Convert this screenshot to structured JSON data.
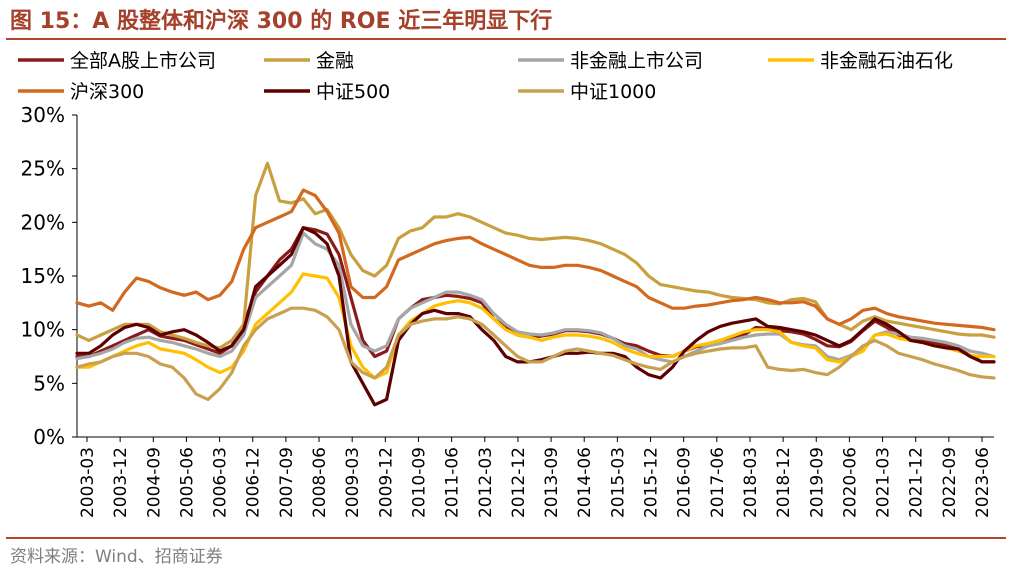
{
  "header": {
    "title": "图 15：A 股整体和沪深 300 的 ROE 近三年明显下行"
  },
  "footer": {
    "source": "资料来源：Wind、招商证券"
  },
  "chart_data": {
    "type": "line",
    "title": "图 15：A 股整体和沪深 300 的 ROE 近三年明显下行",
    "ylabel": "",
    "xlabel": "",
    "ylim": [
      0,
      30
    ],
    "y_ticks": [
      "0%",
      "5%",
      "10%",
      "15%",
      "20%",
      "25%",
      "30%"
    ],
    "y_tick_values": [
      0,
      5,
      10,
      15,
      20,
      25,
      30
    ],
    "grid": false,
    "legend_position": "top",
    "x_tick_labels": [
      "2003-03",
      "2003-12",
      "2004-09",
      "2005-06",
      "2006-03",
      "2006-12",
      "2007-09",
      "2008-06",
      "2009-03",
      "2009-12",
      "2010-09",
      "2011-06",
      "2012-03",
      "2012-12",
      "2013-09",
      "2014-06",
      "2015-03",
      "2015-12",
      "2016-09",
      "2017-06",
      "2018-03",
      "2018-12",
      "2019-09",
      "2020-06",
      "2021-03",
      "2021-12",
      "2022-09",
      "2023-06"
    ],
    "series": [
      {
        "name": "全部A股上市公司",
        "color": "#8b1a1a",
        "values": [
          7.5,
          7.5,
          8.0,
          8.5,
          9.0,
          9.5,
          10.0,
          9.4,
          9.2,
          9.0,
          8.6,
          8.2,
          7.8,
          8.5,
          10.5,
          13.5,
          15.0,
          16.5,
          17.5,
          19.5,
          19.3,
          18.9,
          17.0,
          13.0,
          9.0,
          7.5,
          8.0,
          11.0,
          12.0,
          12.8,
          13.0,
          13.2,
          13.1,
          12.9,
          12.5,
          11.0,
          10.2,
          9.5,
          9.3,
          9.4,
          9.6,
          9.9,
          9.9,
          9.8,
          9.6,
          9.2,
          8.7,
          8.5,
          8.0,
          7.6,
          7.5,
          8.0,
          8.4,
          8.6,
          9.0,
          9.3,
          9.5,
          10.2,
          10.1,
          9.9,
          9.8,
          9.6,
          9.1,
          8.5,
          8.4,
          8.9,
          9.9,
          10.8,
          10.2,
          9.5,
          9.2,
          9.0,
          8.8,
          8.5,
          8.2,
          7.6,
          7.0,
          7.0
        ]
      },
      {
        "name": "金融",
        "color": "#c9a040",
        "values": [
          9.5,
          9.0,
          9.5,
          10.0,
          10.5,
          10.5,
          10.5,
          9.8,
          9.5,
          9.2,
          8.8,
          8.5,
          8.3,
          9.0,
          10.5,
          22.5,
          25.5,
          22.0,
          21.8,
          22.2,
          20.8,
          21.2,
          19.5,
          17.0,
          15.5,
          15.0,
          16.0,
          18.5,
          19.2,
          19.5,
          20.5,
          20.5,
          20.8,
          20.5,
          20.0,
          19.5,
          19.0,
          18.8,
          18.5,
          18.4,
          18.5,
          18.6,
          18.5,
          18.3,
          18.0,
          17.5,
          17.0,
          16.2,
          15.0,
          14.2,
          14.0,
          13.8,
          13.6,
          13.5,
          13.2,
          13.0,
          12.9,
          12.8,
          12.5,
          12.4,
          12.8,
          12.9,
          12.6,
          11.0,
          10.5,
          10.0,
          10.8,
          11.2,
          10.8,
          10.6,
          10.4,
          10.2,
          10.0,
          9.8,
          9.6,
          9.5,
          9.5,
          9.3
        ]
      },
      {
        "name": "非金融上市公司",
        "color": "#a6a6a6",
        "values": [
          7.3,
          7.5,
          7.8,
          8.2,
          8.8,
          9.2,
          9.3,
          9.0,
          8.8,
          8.5,
          8.2,
          7.8,
          7.5,
          8.0,
          9.5,
          13.0,
          14.0,
          15.0,
          16.0,
          19.0,
          18.0,
          17.5,
          16.0,
          10.5,
          8.5,
          8.0,
          8.5,
          11.0,
          12.0,
          12.5,
          13.0,
          13.5,
          13.5,
          13.2,
          12.8,
          11.5,
          10.5,
          9.8,
          9.6,
          9.5,
          9.7,
          10.0,
          10.0,
          9.9,
          9.7,
          9.2,
          8.5,
          8.2,
          7.5,
          7.2,
          7.0,
          7.5,
          8.0,
          8.5,
          8.7,
          9.0,
          9.3,
          9.5,
          9.6,
          9.6,
          8.8,
          8.6,
          8.5,
          7.5,
          7.2,
          7.6,
          8.2,
          9.5,
          9.8,
          9.6,
          9.3,
          9.2,
          9.0,
          8.8,
          8.5,
          8.0,
          7.8,
          7.5
        ]
      },
      {
        "name": "非金融石油石化",
        "color": "#ffc000",
        "values": [
          6.5,
          6.5,
          7.0,
          7.5,
          8.0,
          8.5,
          8.8,
          8.2,
          8.0,
          7.8,
          7.2,
          6.5,
          6.0,
          6.5,
          8.0,
          10.5,
          11.5,
          12.5,
          13.5,
          15.2,
          15.0,
          14.8,
          13.0,
          8.5,
          6.5,
          5.5,
          6.0,
          9.5,
          10.8,
          11.5,
          12.2,
          12.5,
          12.7,
          12.5,
          12.0,
          11.0,
          10.0,
          9.5,
          9.3,
          9.0,
          9.3,
          9.5,
          9.5,
          9.4,
          9.2,
          8.8,
          8.2,
          7.8,
          7.5,
          7.5,
          7.5,
          8.0,
          8.5,
          8.7,
          9.0,
          9.4,
          9.8,
          10.0,
          10.0,
          9.8,
          8.8,
          8.5,
          8.3,
          7.2,
          7.0,
          7.5,
          8.0,
          9.5,
          9.6,
          9.2,
          9.0,
          8.8,
          8.5,
          8.3,
          8.0,
          7.6,
          7.5,
          7.5
        ]
      },
      {
        "name": "沪深300",
        "color": "#d2691e",
        "values": [
          12.5,
          12.2,
          12.5,
          11.8,
          13.5,
          14.8,
          14.5,
          13.9,
          13.5,
          13.2,
          13.5,
          12.8,
          13.2,
          14.5,
          17.5,
          19.5,
          20.0,
          20.5,
          21.0,
          23.0,
          22.5,
          21.0,
          19.0,
          14.0,
          13.0,
          13.0,
          14.0,
          16.5,
          17.0,
          17.5,
          18.0,
          18.3,
          18.5,
          18.6,
          18.0,
          17.5,
          17.0,
          16.5,
          16.0,
          15.8,
          15.8,
          16.0,
          16.0,
          15.8,
          15.5,
          15.0,
          14.5,
          14.0,
          13.0,
          12.5,
          12.0,
          12.0,
          12.2,
          12.3,
          12.5,
          12.7,
          12.8,
          13.0,
          12.8,
          12.5,
          12.5,
          12.6,
          12.2,
          11.0,
          10.5,
          11.0,
          11.8,
          12.0,
          11.5,
          11.2,
          11.0,
          10.8,
          10.6,
          10.5,
          10.4,
          10.3,
          10.2,
          10.0
        ]
      },
      {
        "name": "中证500",
        "color": "#5c0000",
        "values": [
          7.8,
          7.8,
          8.5,
          9.5,
          10.2,
          10.5,
          10.2,
          9.5,
          9.8,
          10.0,
          9.5,
          8.8,
          8.0,
          8.5,
          10.0,
          14.0,
          15.0,
          16.0,
          17.0,
          19.5,
          19.0,
          18.0,
          15.0,
          7.0,
          5.0,
          3.0,
          3.5,
          9.0,
          10.5,
          11.5,
          11.8,
          11.5,
          11.5,
          11.2,
          10.0,
          9.0,
          7.5,
          7.0,
          7.0,
          7.2,
          7.5,
          7.8,
          7.8,
          7.9,
          7.8,
          7.8,
          7.5,
          6.5,
          5.8,
          5.5,
          6.5,
          8.0,
          9.0,
          9.8,
          10.3,
          10.6,
          10.8,
          11.0,
          10.3,
          10.2,
          10.0,
          9.8,
          9.5,
          9.0,
          8.5,
          9.0,
          10.0,
          11.0,
          10.5,
          9.8,
          9.0,
          8.8,
          8.5,
          8.3,
          8.2,
          7.5,
          7.0,
          7.0
        ]
      },
      {
        "name": "中证1000",
        "color": "#c8a050",
        "values": [
          6.5,
          6.8,
          7.0,
          7.5,
          7.8,
          7.8,
          7.5,
          6.8,
          6.5,
          5.5,
          4.0,
          3.5,
          4.5,
          6.0,
          8.5,
          10.0,
          11.0,
          11.5,
          12.0,
          12.0,
          11.8,
          11.2,
          10.0,
          7.0,
          6.0,
          5.5,
          6.5,
          9.5,
          10.5,
          10.8,
          11.0,
          11.0,
          11.2,
          11.0,
          10.5,
          9.5,
          8.5,
          7.5,
          7.0,
          7.0,
          7.5,
          8.0,
          8.2,
          8.0,
          7.8,
          7.6,
          7.2,
          6.8,
          6.5,
          6.3,
          7.0,
          7.5,
          7.8,
          8.0,
          8.2,
          8.3,
          8.3,
          8.5,
          6.5,
          6.3,
          6.2,
          6.3,
          6.0,
          5.8,
          6.5,
          7.5,
          8.5,
          9.0,
          8.5,
          7.8,
          7.5,
          7.2,
          6.8,
          6.5,
          6.2,
          5.8,
          5.6,
          5.5
        ]
      }
    ]
  }
}
